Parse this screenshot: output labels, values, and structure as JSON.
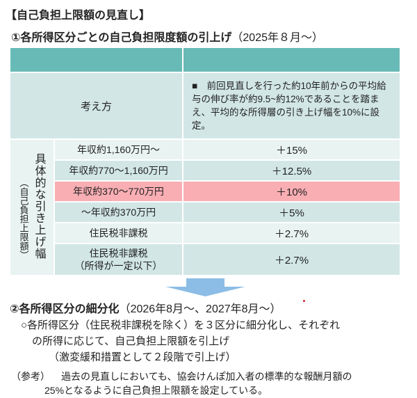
{
  "title": "【自己負担上限額の見直し】",
  "section1": {
    "heading": "①各所得区分ごとの自己負担限度額の引上げ",
    "period": "（2025年８月～）"
  },
  "table": {
    "idea_label": "考え方",
    "idea_text": "■　前回見直しを行った約10年前からの平均給与の伸び率が約9.5~約12%であることを踏まえ、平均的な所得層の引き上げ幅を10%に設定。",
    "side_label": "具体的な引き上げ幅",
    "side_sublabel": "（自己負担上限額）",
    "rows": [
      {
        "bracket": "年収約1,160万円～",
        "increase": "＋15%"
      },
      {
        "bracket": "年収約770～1,160万円",
        "increase": "＋12.5%"
      },
      {
        "bracket": "年収約370～770万円",
        "increase": "＋10%"
      },
      {
        "bracket": "～年収約370万円",
        "increase": "＋5%"
      },
      {
        "bracket": "住民税非課税",
        "increase": "＋2.7%"
      },
      {
        "bracket": "住民税非課税",
        "bracket_note": "（所得が一定以下）",
        "increase": "＋2.7%"
      }
    ]
  },
  "section2": {
    "heading": "②各所得区分の細分化",
    "period": "（2026年8月～、2027年8月～）",
    "line1": "○各所得区分（住民税非課税を除く）を３区分に細分化し、それぞれ",
    "line2": "の所得に応じて、自己負担上限額を引上げ",
    "line3": "（激変緩和措置として２段階で引上げ）"
  },
  "reference": {
    "label": "（参考）",
    "line1": "過去の見直しにおいても、協会けんぽ加入者の標準的な報酬月額の",
    "line2": "25%となるように自己負担上限額を設定している。"
  },
  "colors": {
    "header": "#68bab6",
    "highlight": "#f8aeb3",
    "arrow": "#8cbde6"
  }
}
